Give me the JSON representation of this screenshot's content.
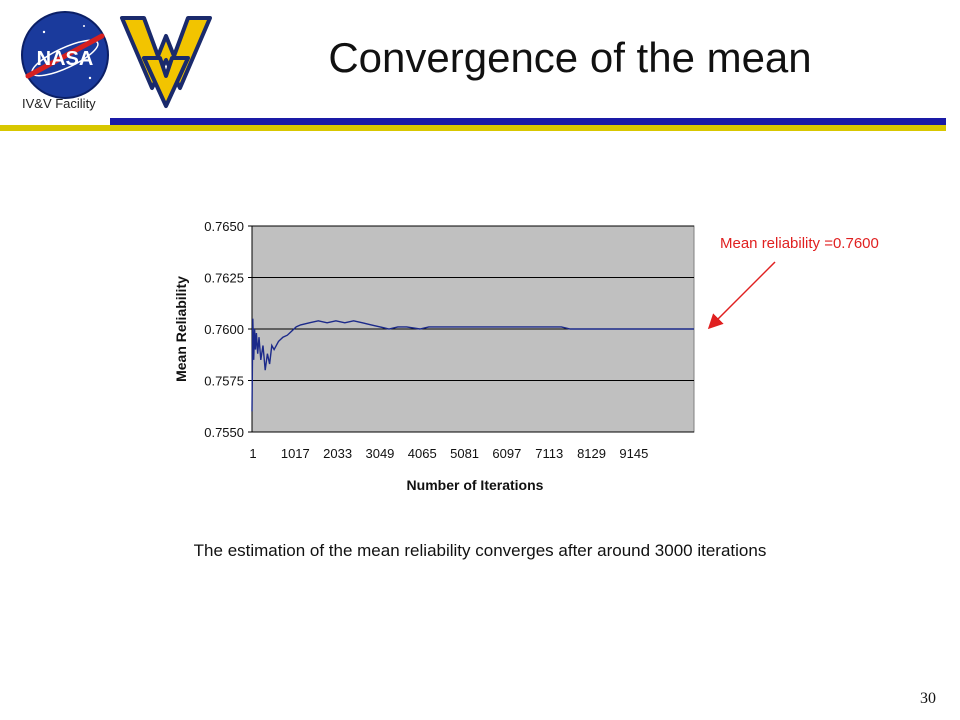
{
  "header": {
    "title": "Convergence of the mean",
    "facility_label": "IV&V Facility",
    "nasa_logo_text": "NASA",
    "colors": {
      "bar_blue": "#1a1aa6",
      "bar_gold": "#d8c700"
    }
  },
  "chart_data": {
    "type": "line",
    "title": "",
    "xlabel": "Number of Iterations",
    "ylabel": "Mean Reliability",
    "x_tick_labels": [
      "1",
      "1017",
      "2033",
      "3049",
      "4065",
      "5081",
      "6097",
      "7113",
      "8129",
      "9145"
    ],
    "y_tick_labels": [
      "0.7650",
      "0.7625",
      "0.7600",
      "0.7575",
      "0.7550"
    ],
    "ylim": [
      0.755,
      0.765
    ],
    "xlim": [
      1,
      10000
    ],
    "grid": true,
    "plot_background": "#c0c0c0",
    "line_color": "#1c2a8a",
    "series": [
      {
        "x": [
          1,
          20,
          40,
          60,
          80,
          100,
          130,
          160,
          200,
          250,
          300,
          350,
          400,
          450,
          500,
          600,
          700,
          800,
          900,
          1000,
          1100,
          1300,
          1500,
          1700,
          1900,
          2100,
          2300,
          2500,
          2700,
          2900,
          3100,
          3300,
          3500,
          3800,
          4000,
          4300,
          4600,
          5000,
          5400,
          5800,
          6200,
          6600,
          7000,
          7200,
          7600,
          8000,
          8400,
          8800,
          9200,
          9600,
          10000
        ],
        "values": [
          0.756,
          0.7605,
          0.7585,
          0.76,
          0.759,
          0.7598,
          0.7588,
          0.7596,
          0.7585,
          0.7592,
          0.758,
          0.7588,
          0.7583,
          0.7592,
          0.759,
          0.7594,
          0.7596,
          0.7597,
          0.7599,
          0.7601,
          0.7602,
          0.7603,
          0.7604,
          0.7603,
          0.7604,
          0.7603,
          0.7604,
          0.7603,
          0.7602,
          0.7601,
          0.76,
          0.7601,
          0.7601,
          0.76,
          0.7601,
          0.7601,
          0.7601,
          0.7601,
          0.7601,
          0.7601,
          0.7601,
          0.7601,
          0.7601,
          0.76,
          0.76,
          0.76,
          0.76,
          0.76,
          0.76,
          0.76,
          0.76
        ]
      }
    ],
    "annotation": {
      "text": "Mean reliability =0.7600",
      "color": "#e02020"
    }
  },
  "caption": "The estimation of the mean reliability converges after around 3000 iterations",
  "page_number": "30"
}
